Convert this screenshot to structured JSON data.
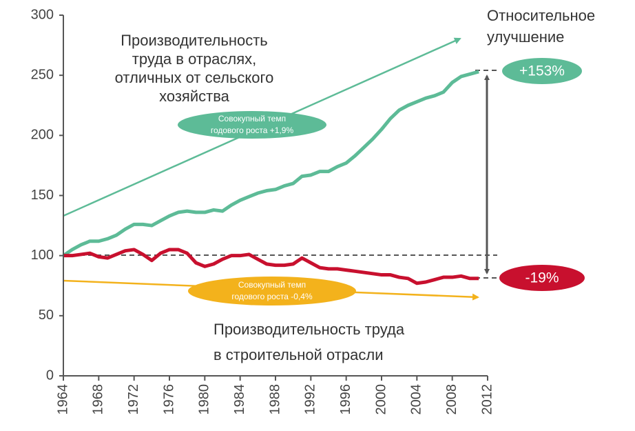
{
  "chart_data": {
    "type": "line",
    "x": [
      1964,
      1965,
      1966,
      1967,
      1968,
      1969,
      1970,
      1971,
      1972,
      1973,
      1974,
      1975,
      1976,
      1977,
      1978,
      1979,
      1980,
      1981,
      1982,
      1983,
      1984,
      1985,
      1986,
      1987,
      1988,
      1989,
      1990,
      1991,
      1992,
      1993,
      1994,
      1995,
      1996,
      1997,
      1998,
      1999,
      2000,
      2001,
      2002,
      2003,
      2004,
      2005,
      2006,
      2007,
      2008,
      2009,
      2010,
      2011
    ],
    "series": [
      {
        "color": "#5dbb97",
        "values": [
          100,
          105,
          109,
          112,
          112,
          114,
          117,
          122,
          126,
          126,
          125,
          129,
          133,
          136,
          137,
          136,
          136,
          138,
          137,
          142,
          146,
          149,
          152,
          154,
          155,
          158,
          160,
          166,
          167,
          170,
          170,
          174,
          177,
          183,
          190,
          197,
          205,
          214,
          221,
          225,
          228,
          231,
          233,
          236,
          244,
          249,
          251,
          253
        ]
      },
      {
        "color": "#c8102e",
        "values": [
          100,
          100,
          101,
          102,
          99,
          98,
          101,
          104,
          105,
          101,
          96,
          102,
          105,
          105,
          102,
          94,
          91,
          93,
          97,
          100,
          100,
          101,
          97,
          93,
          92,
          92,
          93,
          98,
          94,
          90,
          89,
          89,
          88,
          87,
          86,
          85,
          84,
          84,
          82,
          81,
          77,
          78,
          80,
          82,
          82,
          83,
          81,
          81
        ]
      }
    ],
    "xlim": [
      1964,
      2012
    ],
    "xticks": [
      1964,
      1968,
      1972,
      1976,
      1980,
      1984,
      1988,
      1992,
      1996,
      2000,
      2004,
      2008,
      2012
    ],
    "ylim": [
      0,
      300
    ],
    "yticks": [
      0,
      50,
      100,
      150,
      200,
      250,
      300
    ],
    "annotations": {
      "nonfarm": [
        "Производительность",
        "труда в отраслях,",
        "отличных от сельского",
        "хозяйства"
      ],
      "construction": [
        "Производительность труда",
        "в строительной отрасли"
      ],
      "relative": [
        "Относительное",
        "улучшение"
      ],
      "green_rate": [
        "Совокупный темп",
        "годового роста +1,9%"
      ],
      "yellow_rate": [
        "Совокупный темп",
        "годового роста -0,4%"
      ],
      "green_change": "+153%",
      "red_change": "-19%"
    }
  }
}
